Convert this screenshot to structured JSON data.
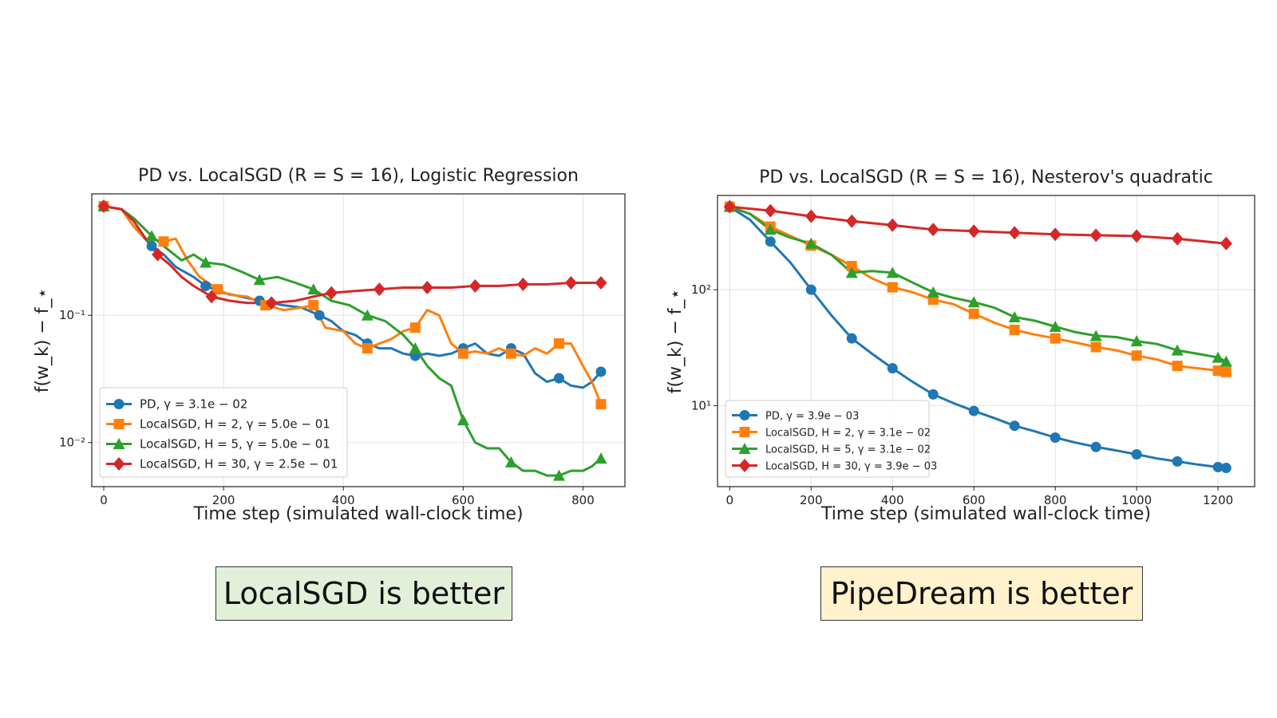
{
  "verdicts": {
    "left": {
      "text": "LocalSGD is better",
      "bg": "#e2f0d9"
    },
    "right": {
      "text": "PipeDream is better",
      "bg": "#fff2cc"
    }
  },
  "chart_data": [
    {
      "type": "line",
      "title": "PD vs. LocalSGD (R = S = 16), Logistic Regression",
      "xlabel": "Time step (simulated wall-clock time)",
      "ylabel": "f(w_k) − f_⋆",
      "yscale": "log",
      "xlim": [
        -20,
        870
      ],
      "ylim": [
        0.0045,
        0.9
      ],
      "xticks": [
        0,
        200,
        400,
        600,
        800
      ],
      "xtick_labels": [
        "0",
        "200",
        "400",
        "600",
        "800"
      ],
      "yticks": [
        0.01,
        0.1
      ],
      "ytick_labels": [
        "10⁻²",
        "10⁻¹"
      ],
      "grid": true,
      "legend_position": "lower-left",
      "series": [
        {
          "name": "PD, γ = 3.1e − 02",
          "color": "#1f77b4",
          "marker": "circle",
          "points": [
            [
              0,
              0.72
            ],
            [
              30,
              0.68
            ],
            [
              50,
              0.5
            ],
            [
              80,
              0.35
            ],
            [
              100,
              0.3
            ],
            [
              120,
              0.24
            ],
            [
              150,
              0.2
            ],
            [
              170,
              0.17
            ],
            [
              200,
              0.15
            ],
            [
              230,
              0.14
            ],
            [
              260,
              0.13
            ],
            [
              300,
              0.12
            ],
            [
              330,
              0.115
            ],
            [
              360,
              0.1
            ],
            [
              380,
              0.09
            ],
            [
              400,
              0.075
            ],
            [
              420,
              0.07
            ],
            [
              440,
              0.06
            ],
            [
              460,
              0.055
            ],
            [
              480,
              0.055
            ],
            [
              500,
              0.05
            ],
            [
              520,
              0.048
            ],
            [
              540,
              0.05
            ],
            [
              560,
              0.048
            ],
            [
              580,
              0.05
            ],
            [
              600,
              0.055
            ],
            [
              620,
              0.06
            ],
            [
              640,
              0.05
            ],
            [
              660,
              0.048
            ],
            [
              680,
              0.055
            ],
            [
              700,
              0.05
            ],
            [
              720,
              0.035
            ],
            [
              740,
              0.03
            ],
            [
              760,
              0.032
            ],
            [
              780,
              0.028
            ],
            [
              800,
              0.027
            ],
            [
              815,
              0.03
            ],
            [
              830,
              0.036
            ]
          ]
        },
        {
          "name": "LocalSGD, H = 2, γ = 5.0e − 01",
          "color": "#ff7f0e",
          "marker": "square",
          "points": [
            [
              0,
              0.72
            ],
            [
              30,
              0.68
            ],
            [
              50,
              0.5
            ],
            [
              70,
              0.4
            ],
            [
              100,
              0.38
            ],
            [
              120,
              0.4
            ],
            [
              140,
              0.27
            ],
            [
              160,
              0.2
            ],
            [
              190,
              0.16
            ],
            [
              210,
              0.145
            ],
            [
              240,
              0.14
            ],
            [
              270,
              0.12
            ],
            [
              300,
              0.11
            ],
            [
              330,
              0.115
            ],
            [
              350,
              0.12
            ],
            [
              370,
              0.08
            ],
            [
              400,
              0.075
            ],
            [
              420,
              0.06
            ],
            [
              440,
              0.055
            ],
            [
              460,
              0.06
            ],
            [
              480,
              0.065
            ],
            [
              500,
              0.075
            ],
            [
              520,
              0.08
            ],
            [
              540,
              0.11
            ],
            [
              560,
              0.1
            ],
            [
              580,
              0.06
            ],
            [
              600,
              0.05
            ],
            [
              620,
              0.052
            ],
            [
              640,
              0.05
            ],
            [
              660,
              0.055
            ],
            [
              680,
              0.05
            ],
            [
              700,
              0.048
            ],
            [
              720,
              0.055
            ],
            [
              740,
              0.05
            ],
            [
              760,
              0.06
            ],
            [
              780,
              0.06
            ],
            [
              800,
              0.04
            ],
            [
              815,
              0.03
            ],
            [
              830,
              0.02
            ]
          ]
        },
        {
          "name": "LocalSGD, H = 5, γ = 5.0e − 01",
          "color": "#2ca02c",
          "marker": "triangle",
          "points": [
            [
              0,
              0.72
            ],
            [
              30,
              0.68
            ],
            [
              50,
              0.58
            ],
            [
              80,
              0.42
            ],
            [
              100,
              0.35
            ],
            [
              130,
              0.27
            ],
            [
              150,
              0.3
            ],
            [
              170,
              0.26
            ],
            [
              200,
              0.25
            ],
            [
              230,
              0.22
            ],
            [
              260,
              0.19
            ],
            [
              290,
              0.2
            ],
            [
              320,
              0.18
            ],
            [
              350,
              0.16
            ],
            [
              380,
              0.13
            ],
            [
              410,
              0.12
            ],
            [
              440,
              0.1
            ],
            [
              470,
              0.09
            ],
            [
              500,
              0.07
            ],
            [
              520,
              0.055
            ],
            [
              540,
              0.04
            ],
            [
              560,
              0.032
            ],
            [
              580,
              0.028
            ],
            [
              600,
              0.015
            ],
            [
              620,
              0.01
            ],
            [
              640,
              0.009
            ],
            [
              660,
              0.009
            ],
            [
              680,
              0.007
            ],
            [
              700,
              0.006
            ],
            [
              720,
              0.006
            ],
            [
              740,
              0.0055
            ],
            [
              760,
              0.0055
            ],
            [
              780,
              0.006
            ],
            [
              800,
              0.006
            ],
            [
              815,
              0.0065
            ],
            [
              830,
              0.0075
            ]
          ]
        },
        {
          "name": "LocalSGD, H = 30, γ = 2.5e − 01",
          "color": "#d62728",
          "marker": "diamond",
          "points": [
            [
              0,
              0.72
            ],
            [
              30,
              0.68
            ],
            [
              50,
              0.55
            ],
            [
              70,
              0.4
            ],
            [
              90,
              0.3
            ],
            [
              110,
              0.25
            ],
            [
              130,
              0.2
            ],
            [
              150,
              0.17
            ],
            [
              180,
              0.14
            ],
            [
              210,
              0.13
            ],
            [
              240,
              0.125
            ],
            [
              280,
              0.125
            ],
            [
              320,
              0.13
            ],
            [
              350,
              0.14
            ],
            [
              380,
              0.15
            ],
            [
              420,
              0.155
            ],
            [
              460,
              0.16
            ],
            [
              500,
              0.165
            ],
            [
              540,
              0.165
            ],
            [
              580,
              0.165
            ],
            [
              620,
              0.17
            ],
            [
              660,
              0.17
            ],
            [
              700,
              0.175
            ],
            [
              740,
              0.175
            ],
            [
              780,
              0.18
            ],
            [
              830,
              0.18
            ]
          ]
        }
      ]
    },
    {
      "type": "line",
      "title": "PD vs. LocalSGD (R = S = 16), Nesterov's quadratic",
      "xlabel": "Time step (simulated wall-clock time)",
      "ylabel": "f(w_k) − f_⋆",
      "yscale": "log",
      "xlim": [
        -30,
        1290
      ],
      "ylim": [
        2,
        650
      ],
      "xticks": [
        0,
        200,
        400,
        600,
        800,
        1000,
        1200
      ],
      "xtick_labels": [
        "0",
        "200",
        "400",
        "600",
        "800",
        "1000",
        "1200"
      ],
      "yticks": [
        10,
        100
      ],
      "ytick_labels": [
        "10¹",
        "10²"
      ],
      "grid": true,
      "legend_position": "lower-left",
      "series": [
        {
          "name": "PD, γ = 3.9e − 03",
          "color": "#1f77b4",
          "marker": "circle",
          "points": [
            [
              0,
              520
            ],
            [
              50,
              400
            ],
            [
              100,
              260
            ],
            [
              150,
              170
            ],
            [
              200,
              100
            ],
            [
              250,
              60
            ],
            [
              300,
              38
            ],
            [
              350,
              28
            ],
            [
              400,
              21
            ],
            [
              450,
              16
            ],
            [
              500,
              12.5
            ],
            [
              550,
              10.5
            ],
            [
              600,
              9
            ],
            [
              650,
              7.8
            ],
            [
              700,
              6.7
            ],
            [
              750,
              6
            ],
            [
              800,
              5.3
            ],
            [
              850,
              4.8
            ],
            [
              900,
              4.4
            ],
            [
              950,
              4.1
            ],
            [
              1000,
              3.8
            ],
            [
              1050,
              3.5
            ],
            [
              1100,
              3.3
            ],
            [
              1150,
              3.1
            ],
            [
              1200,
              2.95
            ],
            [
              1220,
              2.9
            ]
          ]
        },
        {
          "name": "LocalSGD, H = 2, γ = 3.1e − 02",
          "color": "#ff7f0e",
          "marker": "square",
          "points": [
            [
              0,
              520
            ],
            [
              50,
              450
            ],
            [
              100,
              350
            ],
            [
              150,
              290
            ],
            [
              200,
              240
            ],
            [
              250,
              200
            ],
            [
              300,
              160
            ],
            [
              350,
              125
            ],
            [
              400,
              105
            ],
            [
              450,
              95
            ],
            [
              500,
              82
            ],
            [
              550,
              75
            ],
            [
              600,
              62
            ],
            [
              650,
              52
            ],
            [
              700,
              45
            ],
            [
              750,
              41
            ],
            [
              800,
              38
            ],
            [
              850,
              35
            ],
            [
              900,
              32
            ],
            [
              950,
              30
            ],
            [
              1000,
              27
            ],
            [
              1050,
              25
            ],
            [
              1100,
              22
            ],
            [
              1150,
              21
            ],
            [
              1200,
              20
            ],
            [
              1220,
              19.5
            ]
          ]
        },
        {
          "name": "LocalSGD, H = 5, γ = 3.1e − 02",
          "color": "#2ca02c",
          "marker": "triangle",
          "points": [
            [
              0,
              520
            ],
            [
              50,
              450
            ],
            [
              100,
              330
            ],
            [
              150,
              280
            ],
            [
              200,
              250
            ],
            [
              250,
              200
            ],
            [
              300,
              140
            ],
            [
              350,
              145
            ],
            [
              400,
              140
            ],
            [
              450,
              115
            ],
            [
              500,
              95
            ],
            [
              550,
              85
            ],
            [
              600,
              78
            ],
            [
              650,
              70
            ],
            [
              700,
              58
            ],
            [
              750,
              54
            ],
            [
              800,
              48
            ],
            [
              850,
              43
            ],
            [
              900,
              40
            ],
            [
              950,
              39
            ],
            [
              1000,
              36
            ],
            [
              1050,
              34
            ],
            [
              1100,
              30
            ],
            [
              1150,
              28
            ],
            [
              1200,
              26
            ],
            [
              1220,
              24
            ]
          ]
        },
        {
          "name": "LocalSGD, H = 30, γ = 3.9e − 03",
          "color": "#d62728",
          "marker": "diamond",
          "points": [
            [
              0,
              520
            ],
            [
              100,
              480
            ],
            [
              200,
              430
            ],
            [
              300,
              390
            ],
            [
              400,
              360
            ],
            [
              500,
              330
            ],
            [
              600,
              320
            ],
            [
              700,
              310
            ],
            [
              800,
              300
            ],
            [
              900,
              295
            ],
            [
              1000,
              290
            ],
            [
              1100,
              275
            ],
            [
              1220,
              250
            ]
          ]
        }
      ]
    }
  ]
}
